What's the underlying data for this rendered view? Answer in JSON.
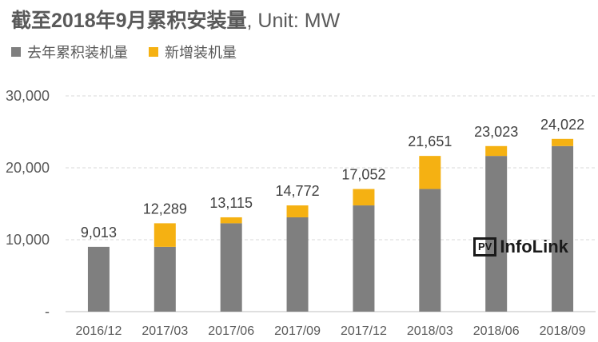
{
  "title": {
    "bold_part": "截至2018年9月累积安装量",
    "rest": ", Unit: MW"
  },
  "colors": {
    "base": "#7f7f7f",
    "added": "#f5b112",
    "grid": "#d9d9d9"
  },
  "chart_data": {
    "type": "bar",
    "stacked": true,
    "categories": [
      "2016/12",
      "2017/03",
      "2017/06",
      "2017/09",
      "2017/12",
      "2018/03",
      "2018/06",
      "2018/09"
    ],
    "series": [
      {
        "name": "去年累积装机量",
        "values": [
          9013,
          9013,
          12289,
          13115,
          14772,
          17052,
          21651,
          23023
        ]
      },
      {
        "name": "新增装机量",
        "values": [
          0,
          3276,
          826,
          1657,
          2280,
          4599,
          1372,
          999
        ]
      }
    ],
    "totals": [
      "9,013",
      "12,289",
      "13,115",
      "14,772",
      "17,052",
      "21,651",
      "23,023",
      "24,022"
    ],
    "yticks": [
      {
        "value": 0,
        "label": "-"
      },
      {
        "value": 10000,
        "label": "10,000"
      },
      {
        "value": 20000,
        "label": "20,000"
      },
      {
        "value": 30000,
        "label": "30,000"
      }
    ],
    "ylim": [
      0,
      30000
    ],
    "grid": true,
    "legend": "top-left"
  },
  "watermark": {
    "box": "PV",
    "text": "InfoLink"
  }
}
